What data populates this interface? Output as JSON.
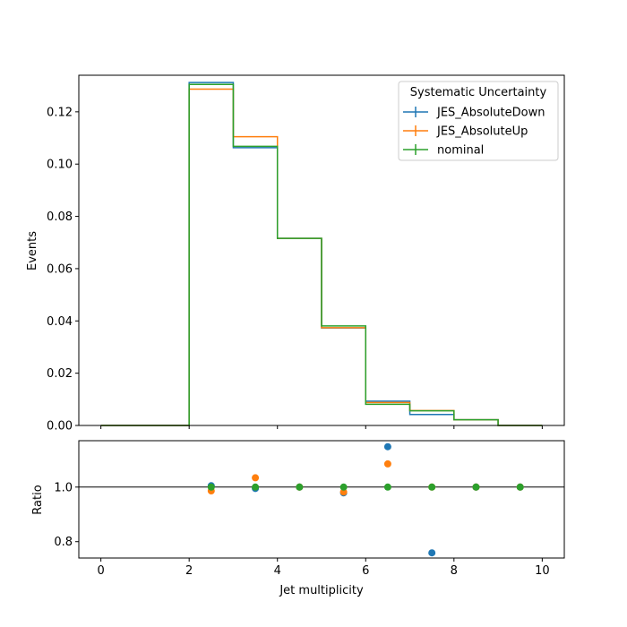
{
  "chart_data": [
    {
      "type": "line",
      "drawstyle": "steps",
      "bin_edges": [
        0,
        1,
        2,
        3,
        4,
        5,
        6,
        7,
        8,
        9,
        10
      ],
      "ylabel": "Events",
      "ylim": [
        0,
        0.134
      ],
      "xlim": [
        -0.5,
        10.5
      ],
      "yticks": [
        "0.00",
        "0.02",
        "0.04",
        "0.06",
        "0.08",
        "0.10",
        "0.12"
      ],
      "grid": false,
      "legend": {
        "title": "Systematic Uncertainty",
        "placement": "top-right",
        "entries": [
          "JES_AbsoluteDown",
          "JES_AbsoluteUp",
          "nominal"
        ]
      },
      "series": [
        {
          "name": "JES_AbsoluteDown",
          "color": "#1f77b4",
          "values": [
            0,
            0,
            0.1312,
            0.1063,
            0.0716,
            0.0373,
            0.0093,
            0.0042,
            0.0022,
            0
          ]
        },
        {
          "name": "JES_AbsoluteUp",
          "color": "#ff7f0e",
          "values": [
            0,
            0,
            0.1287,
            0.1105,
            0.0716,
            0.0374,
            0.0088,
            0.0057,
            0.0022,
            0
          ]
        },
        {
          "name": "nominal",
          "color": "#2ca02c",
          "values": [
            0,
            0,
            0.1305,
            0.1068,
            0.0716,
            0.0381,
            0.0081,
            0.0056,
            0.0022,
            0
          ]
        }
      ]
    },
    {
      "type": "scatter",
      "xlabel": "Jet multiplicity",
      "ylabel": "Ratio",
      "xlim": [
        -0.5,
        10.5
      ],
      "ylim": [
        0.74,
        1.17
      ],
      "xticks": [
        0,
        2,
        4,
        6,
        8,
        10
      ],
      "yticks": [
        "0.8",
        "1.0"
      ],
      "reference_line": 1.0,
      "series": [
        {
          "name": "JES_AbsoluteDown",
          "color": "#1f77b4",
          "x": [
            2.5,
            3.5,
            4.5,
            5.5,
            6.5,
            7.5,
            8.5,
            9.5
          ],
          "y": [
            1.005,
            0.995,
            1.0,
            0.979,
            1.148,
            0.759,
            1.0,
            1.0
          ]
        },
        {
          "name": "JES_AbsoluteUp",
          "color": "#ff7f0e",
          "x": [
            2.5,
            3.5,
            4.5,
            5.5,
            6.5,
            7.5,
            8.5,
            9.5
          ],
          "y": [
            0.986,
            1.034,
            1.0,
            0.982,
            1.085,
            1.0,
            1.0,
            1.0
          ]
        },
        {
          "name": "nominal",
          "color": "#2ca02c",
          "x": [
            2.5,
            3.5,
            4.5,
            5.5,
            6.5,
            7.5,
            8.5,
            9.5
          ],
          "y": [
            1.0,
            1.0,
            1.0,
            1.0,
            1.0,
            1.0,
            1.0,
            1.0
          ]
        }
      ]
    }
  ]
}
